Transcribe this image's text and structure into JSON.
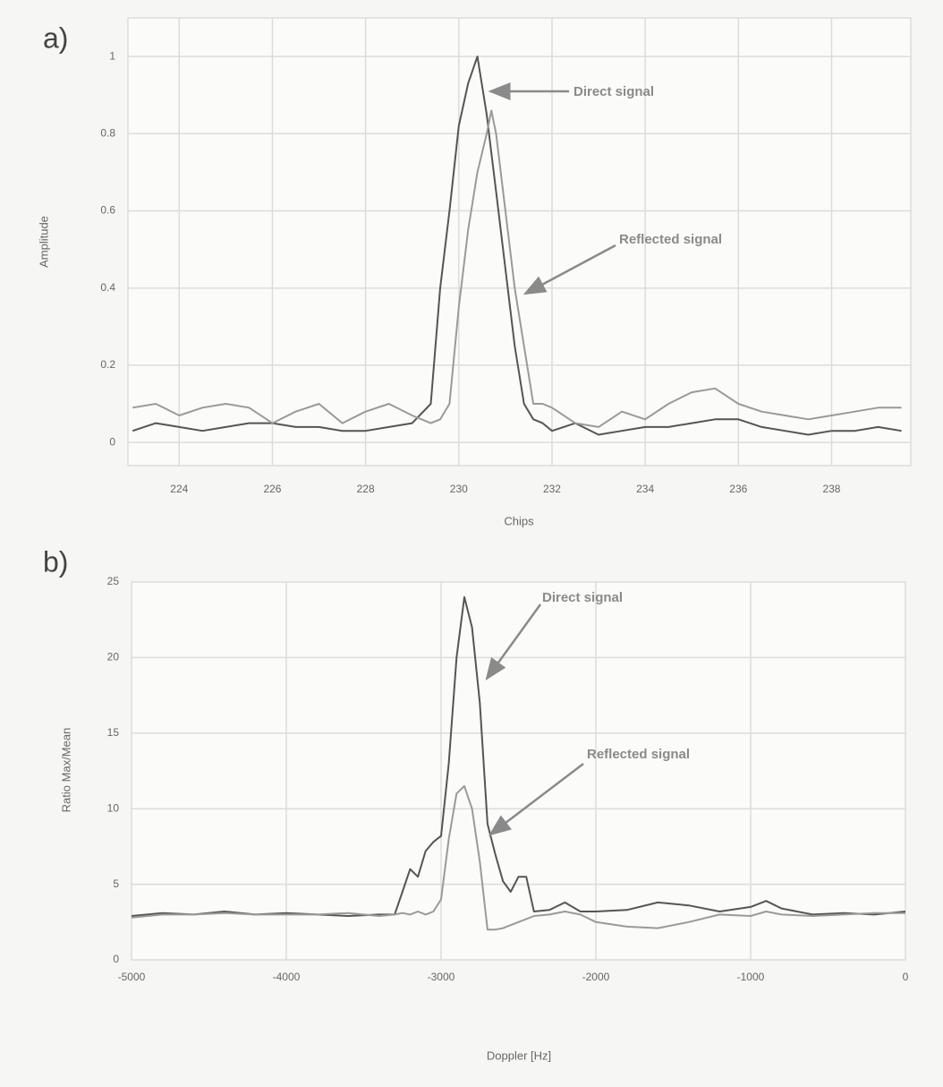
{
  "chart_data": [
    {
      "type": "line",
      "label": "a)",
      "xlabel": "Chips",
      "ylabel": "Amplitude",
      "x": [
        223,
        223.5,
        224,
        224.5,
        225,
        225.5,
        226,
        226.5,
        227,
        227.5,
        228,
        228.5,
        229,
        229.4,
        229.6,
        229.8,
        230,
        230.2,
        230.4,
        230.6,
        230.7,
        230.8,
        231,
        231.2,
        231.4,
        231.6,
        231.8,
        232,
        232.5,
        233,
        233.5,
        234,
        234.5,
        235,
        235.5,
        236,
        236.5,
        237,
        237.5,
        238,
        238.5,
        239,
        239.5
      ],
      "series": [
        {
          "color": "#555555",
          "values": [
            0.03,
            0.05,
            0.04,
            0.03,
            0.04,
            0.05,
            0.05,
            0.04,
            0.04,
            0.03,
            0.03,
            0.04,
            0.05,
            0.1,
            0.4,
            0.6,
            0.82,
            0.93,
            1.0,
            0.85,
            0.75,
            0.65,
            0.45,
            0.25,
            0.1,
            0.06,
            0.05,
            0.03,
            0.05,
            0.02,
            0.03,
            0.04,
            0.04,
            0.05,
            0.06,
            0.06,
            0.04,
            0.03,
            0.02,
            0.03,
            0.03,
            0.04,
            0.03
          ]
        },
        {
          "color": "#9a9a9a",
          "values": [
            0.09,
            0.1,
            0.07,
            0.09,
            0.1,
            0.09,
            0.05,
            0.08,
            0.1,
            0.05,
            0.08,
            0.1,
            0.07,
            0.05,
            0.06,
            0.1,
            0.35,
            0.55,
            0.7,
            0.8,
            0.86,
            0.8,
            0.6,
            0.4,
            0.25,
            0.1,
            0.1,
            0.09,
            0.05,
            0.04,
            0.08,
            0.06,
            0.1,
            0.13,
            0.14,
            0.1,
            0.08,
            0.07,
            0.06,
            0.07,
            0.08,
            0.09,
            0.09
          ]
        }
      ],
      "annotations": [
        "Direct signal",
        "Reflected signal"
      ],
      "xlim": [
        222.9,
        239.7
      ],
      "xticks": [
        224,
        226,
        228,
        230,
        232,
        234,
        236,
        238
      ],
      "ylim": [
        -0.06,
        1.1
      ],
      "yticks": [
        0,
        0.2,
        0.4,
        0.6,
        0.8,
        1
      ],
      "grid": true
    },
    {
      "type": "line",
      "label": "b)",
      "xlabel": "Doppler [Hz]",
      "ylabel": "Ratio Max/Mean",
      "x": [
        -5000,
        -4800,
        -4600,
        -4400,
        -4200,
        -4000,
        -3800,
        -3600,
        -3400,
        -3300,
        -3250,
        -3200,
        -3150,
        -3100,
        -3050,
        -3000,
        -2950,
        -2900,
        -2850,
        -2800,
        -2750,
        -2700,
        -2650,
        -2600,
        -2550,
        -2500,
        -2450,
        -2400,
        -2300,
        -2200,
        -2100,
        -2000,
        -1800,
        -1600,
        -1400,
        -1200,
        -1000,
        -900,
        -800,
        -600,
        -400,
        -200,
        0
      ],
      "series": [
        {
          "color": "#555555",
          "values": [
            2.9,
            3.1,
            3.0,
            3.2,
            3.0,
            3.1,
            3.0,
            2.9,
            3.0,
            3.0,
            4.5,
            6,
            5.5,
            7.2,
            7.8,
            8.2,
            13,
            20,
            24,
            22,
            17,
            9,
            7,
            5.2,
            4.5,
            5.5,
            5.5,
            3.2,
            3.3,
            3.8,
            3.2,
            3.2,
            3.3,
            3.8,
            3.6,
            3.2,
            3.5,
            3.9,
            3.4,
            3.0,
            3.1,
            3.0,
            3.2
          ]
        },
        {
          "color": "#9a9a9a",
          "values": [
            2.8,
            3.0,
            3.0,
            3.1,
            3.0,
            3.0,
            3.0,
            3.1,
            2.9,
            3.0,
            3.1,
            3.0,
            3.2,
            3.0,
            3.2,
            4.0,
            8,
            11,
            11.5,
            10,
            6.5,
            2.0,
            2.0,
            2.1,
            2.3,
            2.5,
            2.7,
            2.9,
            3.0,
            3.2,
            3.0,
            2.5,
            2.2,
            2.1,
            2.5,
            3.0,
            2.9,
            3.2,
            3.0,
            2.9,
            3.0,
            3.1,
            3.1
          ]
        }
      ],
      "annotations": [
        "Direct signal",
        "Reflected signal"
      ],
      "xlim": [
        -5000,
        0
      ],
      "xticks": [
        -5000,
        -4000,
        -3000,
        -2000,
        -1000,
        0
      ],
      "ylim": [
        0,
        25
      ],
      "yticks": [
        0,
        5,
        10,
        15,
        20,
        25
      ],
      "grid": true
    }
  ]
}
